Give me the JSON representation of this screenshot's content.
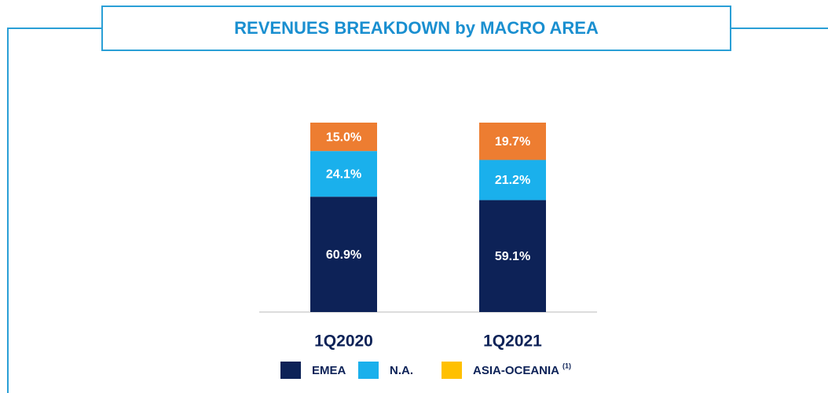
{
  "chart_data": {
    "type": "stacked_bar",
    "title": "REVENUES BREAKDOWN by MACRO AREA",
    "categories": [
      "1Q2020",
      "1Q2021"
    ],
    "ylim": [
      0,
      100
    ],
    "series": [
      {
        "name": "EMEA",
        "color": "#0d2257",
        "values": [
          60.9,
          59.1
        ],
        "value_labels": [
          "60.9%",
          "59.1%"
        ]
      },
      {
        "name": "N.A.",
        "color": "#1ab0ec",
        "values": [
          24.1,
          21.2
        ],
        "value_labels": [
          "24.1%",
          "21.2%"
        ]
      },
      {
        "name": "ASIA-OCEANIA",
        "legend_note": "(1)",
        "color": "#ed7d31",
        "legend_color": "#ffc000",
        "values": [
          15.0,
          19.7
        ],
        "value_labels": [
          "15.0%",
          "19.7%"
        ]
      }
    ]
  }
}
